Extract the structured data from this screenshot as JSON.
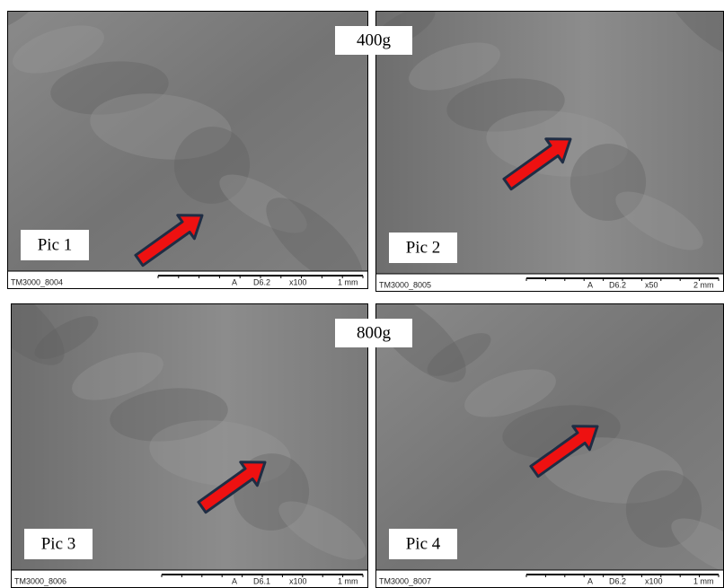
{
  "group_labels": [
    "400g",
    "800g"
  ],
  "panels": [
    {
      "label": "Pic 1",
      "footer": [
        "TM3000_8004",
        "A",
        "D6.2",
        "x100",
        "1 mm"
      ]
    },
    {
      "label": "Pic 2",
      "footer": [
        "TM3000_8005",
        "A",
        "D6.2",
        "x50",
        "2 mm"
      ]
    },
    {
      "label": "Pic 3",
      "footer": [
        "TM3000_8006",
        "A",
        "D6.1",
        "x100",
        "1 mm"
      ]
    },
    {
      "label": "Pic 4",
      "footer": [
        "TM3000_8007",
        "A",
        "D6.2",
        "x100",
        "1 mm"
      ]
    }
  ]
}
